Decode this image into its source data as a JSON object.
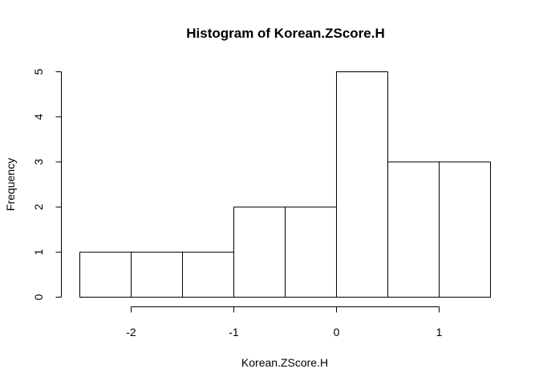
{
  "chart_data": {
    "type": "bar",
    "title": "Histogram of Korean.ZScore.H",
    "xlabel": "Korean.ZScore.H",
    "ylabel": "Frequency",
    "bins": [
      {
        "start": -2.5,
        "end": -2.0,
        "count": 1
      },
      {
        "start": -2.0,
        "end": -1.5,
        "count": 1
      },
      {
        "start": -1.5,
        "end": -1.0,
        "count": 1
      },
      {
        "start": -1.0,
        "end": -0.5,
        "count": 2
      },
      {
        "start": -0.5,
        "end": 0.0,
        "count": 2
      },
      {
        "start": 0.0,
        "end": 0.5,
        "count": 5
      },
      {
        "start": 0.5,
        "end": 1.0,
        "count": 3
      },
      {
        "start": 1.0,
        "end": 1.5,
        "count": 3
      }
    ],
    "xticks": [
      -2,
      -1,
      0,
      1
    ],
    "xtick_labels": [
      "-2",
      "-1",
      "0",
      "1"
    ],
    "yticks": [
      0,
      1,
      2,
      3,
      4,
      5
    ],
    "ytick_labels": [
      "0",
      "1",
      "2",
      "3",
      "4",
      "5"
    ],
    "xlim": [
      -2.5,
      1.5
    ],
    "ylim": [
      0,
      5
    ],
    "grid": false,
    "bar_fill": "#ffffff",
    "bar_stroke": "#000000"
  }
}
